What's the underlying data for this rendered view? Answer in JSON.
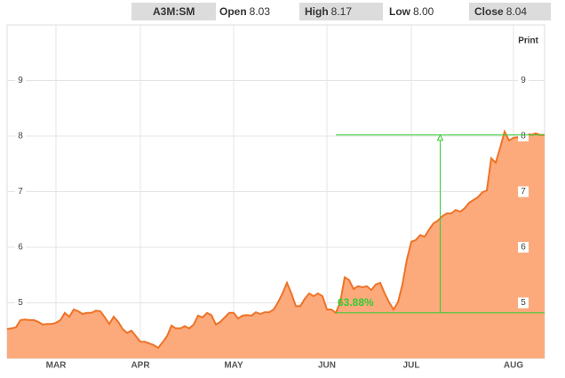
{
  "header": {
    "symbol": "A3M:SM",
    "fields": [
      {
        "label": "Open",
        "value": "8.03"
      },
      {
        "label": "High",
        "value": "8.17"
      },
      {
        "label": "Low",
        "value": "8.00"
      },
      {
        "label": "Close",
        "value": "8.04"
      }
    ],
    "print": "Print"
  },
  "chart_data": {
    "type": "area",
    "categories": [
      null,
      null,
      null,
      null,
      null,
      null,
      null,
      null,
      null,
      null,
      null,
      "MAR",
      null,
      null,
      null,
      null,
      null,
      null,
      null,
      null,
      null,
      null,
      null,
      null,
      null,
      null,
      null,
      null,
      null,
      null,
      "APR",
      null,
      null,
      null,
      null,
      null,
      null,
      null,
      null,
      null,
      null,
      null,
      null,
      null,
      null,
      null,
      null,
      null,
      null,
      null,
      null,
      "MAY",
      null,
      null,
      null,
      null,
      null,
      null,
      null,
      null,
      null,
      null,
      null,
      null,
      null,
      null,
      null,
      null,
      null,
      null,
      null,
      null,
      "JUN",
      null,
      null,
      null,
      null,
      null,
      null,
      null,
      null,
      null,
      null,
      null,
      null,
      null,
      null,
      null,
      null,
      null,
      null,
      "JUL",
      null,
      null,
      null,
      null,
      null,
      null,
      null,
      null,
      null,
      null,
      null,
      null,
      null,
      null,
      null,
      null,
      null,
      null,
      null,
      null,
      null,
      null,
      "AUG",
      null,
      null,
      null,
      null,
      null,
      null,
      null
    ],
    "values": [
      4.53,
      4.54,
      4.56,
      4.69,
      4.7,
      4.69,
      4.69,
      4.66,
      4.61,
      4.62,
      4.62,
      4.64,
      4.69,
      4.82,
      4.75,
      4.88,
      4.85,
      4.8,
      4.82,
      4.82,
      4.86,
      4.85,
      4.74,
      4.62,
      4.75,
      4.66,
      4.53,
      4.46,
      4.5,
      4.4,
      4.3,
      4.3,
      4.27,
      4.24,
      4.19,
      4.29,
      4.4,
      4.59,
      4.54,
      4.54,
      4.58,
      4.54,
      4.61,
      4.77,
      4.74,
      4.82,
      4.78,
      4.61,
      4.66,
      4.74,
      4.82,
      4.82,
      4.72,
      4.77,
      4.78,
      4.77,
      4.83,
      4.8,
      4.83,
      4.83,
      4.88,
      5.01,
      5.17,
      5.36,
      5.17,
      4.94,
      4.94,
      5.07,
      5.17,
      5.12,
      5.17,
      5.12,
      4.88,
      4.88,
      4.82,
      5.01,
      5.46,
      5.41,
      5.25,
      5.3,
      5.28,
      5.3,
      5.23,
      5.33,
      5.36,
      5.17,
      5.01,
      4.88,
      5.01,
      5.33,
      5.78,
      6.1,
      6.13,
      6.22,
      6.19,
      6.32,
      6.43,
      6.48,
      6.56,
      6.61,
      6.61,
      6.67,
      6.64,
      6.7,
      6.8,
      6.85,
      6.9,
      6.99,
      7.02,
      7.6,
      7.52,
      7.79,
      8.08,
      7.92,
      7.97,
      7.98,
      8.02,
      8.05,
      8.02,
      8.05,
      8.02,
      8.02
    ],
    "color": "#fcaa7c",
    "line_color": "#ee7327",
    "ylim": [
      4,
      10
    ],
    "yticks": [
      5,
      6,
      7,
      8,
      9
    ],
    "grid": true,
    "annotation": "63.88%",
    "annotation_color": "#33cc33"
  }
}
